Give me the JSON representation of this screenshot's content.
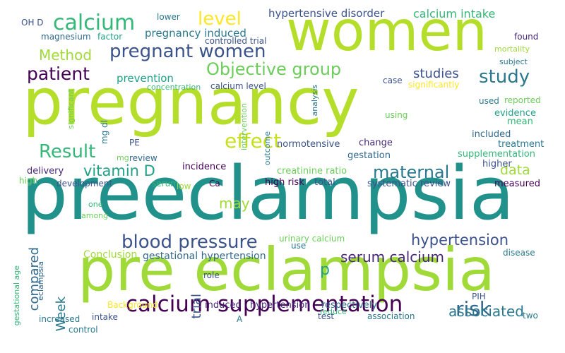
{
  "palette": {
    "lime": "#b5de2b",
    "yellowgreen": "#c8e020",
    "green": "#6ccd5a",
    "teal": "#21918c",
    "darkteal": "#2a788e",
    "navy": "#31688e",
    "indigo": "#3b528b",
    "purple": "#440154",
    "violet": "#482878",
    "seagreen": "#35b779",
    "mint": "#1fa187",
    "gold": "#fde725"
  },
  "words": [
    {
      "text": "preeclampsia",
      "color": "#21918c"
    },
    {
      "text": "pregnancy",
      "color": "#b5de2b"
    },
    {
      "text": "pre eclampsia",
      "color": "#a0da39"
    },
    {
      "text": "women",
      "color": "#b5de2b"
    },
    {
      "text": "calcium supplementation",
      "color": "#440154"
    },
    {
      "text": "blood pressure",
      "color": "#3b528b"
    },
    {
      "text": "pregnant women",
      "color": "#3b528b"
    },
    {
      "text": "calcium",
      "color": "#35b779"
    },
    {
      "text": "study",
      "color": "#2a788e"
    },
    {
      "text": "risk",
      "color": "#31688e"
    },
    {
      "text": "effect",
      "color": "#c8e020"
    },
    {
      "text": "Objective group",
      "color": "#6ccd5a"
    },
    {
      "text": "Result",
      "color": "#35b779"
    },
    {
      "text": "patient",
      "color": "#440154"
    },
    {
      "text": "level",
      "color": "#fde725"
    },
    {
      "text": "maternal",
      "color": "#2a788e"
    },
    {
      "text": "hypertension",
      "color": "#3b528b"
    },
    {
      "text": "vitamin D",
      "color": "#1fa187"
    },
    {
      "text": "serum calcium",
      "color": "#482878"
    },
    {
      "text": "associated",
      "color": "#2a788e"
    },
    {
      "text": "Method",
      "color": "#a0da39"
    },
    {
      "text": "studies",
      "color": "#3b528b"
    },
    {
      "text": "data",
      "color": "#a0da39"
    },
    {
      "text": "p",
      "color": "#1fa187"
    },
    {
      "text": "may",
      "color": "#a0da39"
    },
    {
      "text": "compared",
      "color": "#31688e"
    },
    {
      "text": "Week",
      "color": "#2a788e"
    },
    {
      "text": "trial",
      "color": "#3b528b"
    },
    {
      "text": "calcium intake",
      "color": "#35b779"
    },
    {
      "text": "hypertensive disorder",
      "color": "#3b528b"
    },
    {
      "text": "pregnancy induced",
      "color": "#2a788e"
    },
    {
      "text": "prevention",
      "color": "#1fa187"
    },
    {
      "text": "gestational hypertension",
      "color": "#31688e"
    },
    {
      "text": "Conclusion",
      "color": "#a0da39"
    },
    {
      "text": "induced",
      "color": "#482878"
    },
    {
      "text": "hypertension",
      "color": "#482878"
    },
    {
      "text": "respectively",
      "color": "#31688e"
    },
    {
      "text": "systematic review",
      "color": "#3b528b"
    },
    {
      "text": "high risk",
      "color": "#440154"
    },
    {
      "text": "total",
      "color": "#3b528b"
    },
    {
      "text": "creatinine ratio",
      "color": "#6ccd5a"
    },
    {
      "text": "normotensive",
      "color": "#3b528b"
    },
    {
      "text": "change",
      "color": "#482878"
    },
    {
      "text": "gestation",
      "color": "#31688e"
    },
    {
      "text": "supplementation",
      "color": "#35b779"
    },
    {
      "text": "treatment",
      "color": "#2a788e"
    },
    {
      "text": "included",
      "color": "#31688e"
    },
    {
      "text": "evidence",
      "color": "#1fa187"
    },
    {
      "text": "mean",
      "color": "#35b779"
    },
    {
      "text": "higher",
      "color": "#3b528b"
    },
    {
      "text": "measured",
      "color": "#440154"
    },
    {
      "text": "incidence",
      "color": "#440154"
    },
    {
      "text": "delivery",
      "color": "#482878"
    },
    {
      "text": "development",
      "color": "#3b528b"
    },
    {
      "text": "serum",
      "color": "#35b779"
    },
    {
      "text": "low",
      "color": "#a0da39"
    },
    {
      "text": "Ca",
      "color": "#440154"
    },
    {
      "text": "review",
      "color": "#31688e"
    },
    {
      "text": "mg",
      "color": "#6ccd5a"
    },
    {
      "text": "PE",
      "color": "#3b528b"
    },
    {
      "text": "mg dl",
      "color": "#2a788e"
    },
    {
      "text": "high",
      "color": "#6ccd5a"
    },
    {
      "text": "one",
      "color": "#35b779"
    },
    {
      "text": "among",
      "color": "#6ccd5a"
    },
    {
      "text": "urinary calcium",
      "color": "#6ccd5a"
    },
    {
      "text": "use",
      "color": "#2a788e"
    },
    {
      "text": "role",
      "color": "#3b528b"
    },
    {
      "text": "PIH",
      "color": "#3b528b"
    },
    {
      "text": "disease",
      "color": "#2a788e"
    },
    {
      "text": "Background",
      "color": "#fde725"
    },
    {
      "text": "increased",
      "color": "#2a788e"
    },
    {
      "text": "control",
      "color": "#2a788e"
    },
    {
      "text": "intake",
      "color": "#3b528b"
    },
    {
      "text": "A",
      "color": "#2a788e"
    },
    {
      "text": "test",
      "color": "#3b528b"
    },
    {
      "text": "reduce",
      "color": "#35b779"
    },
    {
      "text": "association",
      "color": "#2a788e"
    },
    {
      "text": "two",
      "color": "#2a788e"
    },
    {
      "text": "lower",
      "color": "#2a788e"
    },
    {
      "text": "magnesium",
      "color": "#31688e"
    },
    {
      "text": "factor",
      "color": "#1fa187"
    },
    {
      "text": "controlled trial",
      "color": "#3b528b"
    },
    {
      "text": "OH D",
      "color": "#3b528b"
    },
    {
      "text": "concentration",
      "color": "#35b779"
    },
    {
      "text": "calcium level",
      "color": "#3b528b"
    },
    {
      "text": "case",
      "color": "#3b528b"
    },
    {
      "text": "significantly",
      "color": "#fde725"
    },
    {
      "text": "analysis",
      "color": "#2a788e"
    },
    {
      "text": "found",
      "color": "#482878"
    },
    {
      "text": "mortality",
      "color": "#a0da39"
    },
    {
      "text": "subject",
      "color": "#2a788e"
    },
    {
      "text": "reported",
      "color": "#6ccd5a"
    },
    {
      "text": "used",
      "color": "#2a788e"
    },
    {
      "text": "using",
      "color": "#6ccd5a"
    },
    {
      "text": "significant",
      "color": "#6ccd5a"
    },
    {
      "text": "intervention",
      "color": "#6ccd5a"
    },
    {
      "text": "outcome",
      "color": "#2a788e"
    },
    {
      "text": "eclampsia",
      "color": "#31688e"
    },
    {
      "text": "gestational age",
      "color": "#35b779"
    }
  ]
}
